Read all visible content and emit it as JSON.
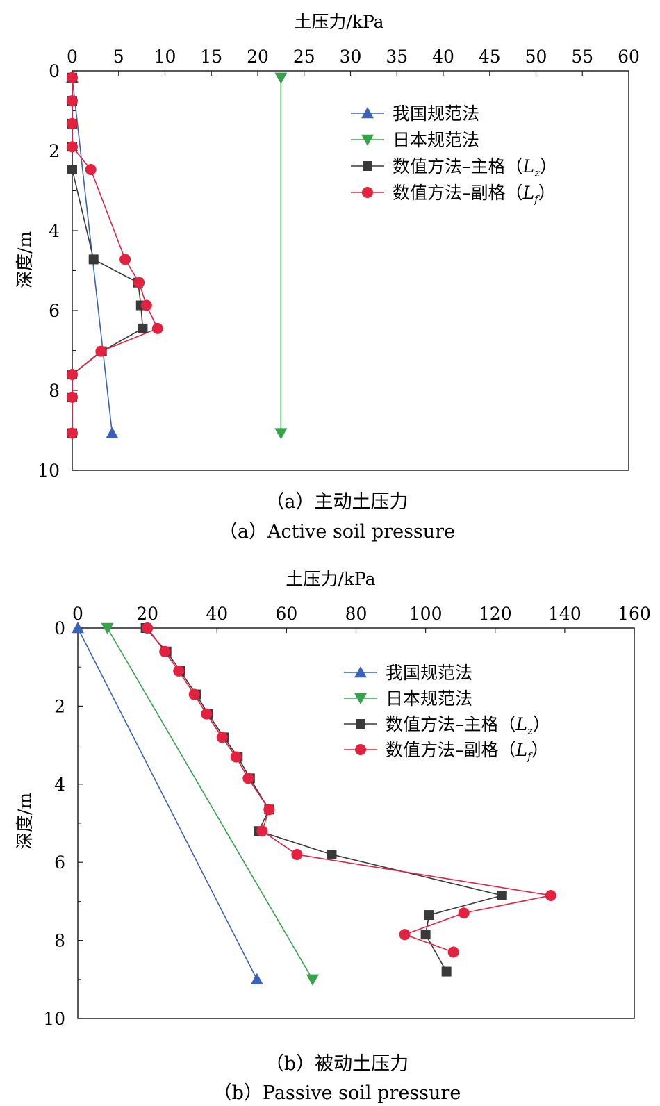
{
  "colors": {
    "cn_code": "#3a62b8",
    "jp_code": "#34a34a",
    "num_main": "#3a3a3a",
    "num_aux": "#e3223f",
    "axis": "#222222"
  },
  "chart_data": [
    {
      "type": "line",
      "xlabel": "土压力/kPa",
      "ylabel": "深度/m",
      "xlim": [
        0,
        60
      ],
      "ylim": [
        0,
        10
      ],
      "y_inverted": true,
      "x_axis_position": "top",
      "xticks": [
        "0",
        "5",
        "10",
        "15",
        "20",
        "25",
        "30",
        "35",
        "40",
        "45",
        "50",
        "55",
        "60"
      ],
      "yticks": [
        "0",
        "2",
        "4",
        "6",
        "8",
        "10"
      ],
      "legend_position": "top-right",
      "caption_cn": "（a）主动土压力",
      "caption_en": "（a）Active soil pressure",
      "series": [
        {
          "name": "我国规范法",
          "marker": "triangle-up",
          "color_key": "cn_code",
          "x": [
            0,
            4.3
          ],
          "y": [
            0.17,
            9.07
          ]
        },
        {
          "name": "日本规范法",
          "marker": "triangle-down",
          "color_key": "jp_code",
          "x": [
            22.5,
            22.5
          ],
          "y": [
            0.17,
            9.07
          ]
        },
        {
          "name": "数值方法–主格（",
          "name_italic": "L",
          "name_sub": "z",
          "name_close": "）",
          "marker": "square",
          "color_key": "num_main",
          "x": [
            0,
            0,
            0,
            0,
            0,
            2.3,
            7.1,
            7.4,
            7.6,
            3.2,
            0,
            0,
            0
          ],
          "y": [
            0.17,
            0.75,
            1.32,
            1.9,
            2.47,
            4.72,
            5.3,
            5.87,
            6.45,
            7.02,
            7.6,
            8.17,
            9.07
          ]
        },
        {
          "name": "数值方法–副格（",
          "name_italic": "L",
          "name_sub": "f",
          "name_close": "）",
          "marker": "circle",
          "color_key": "num_aux",
          "x": [
            0,
            0,
            0,
            0,
            2,
            5.7,
            7.2,
            8,
            9.2,
            3.1,
            0,
            0,
            0
          ],
          "y": [
            0.17,
            0.75,
            1.32,
            1.9,
            2.47,
            4.72,
            5.3,
            5.87,
            6.45,
            7.02,
            7.6,
            8.17,
            9.07
          ]
        }
      ]
    },
    {
      "type": "line",
      "xlabel": "土压力/kPa",
      "ylabel": "深度/m",
      "xlim": [
        0,
        160
      ],
      "ylim": [
        0,
        10
      ],
      "y_inverted": true,
      "x_axis_position": "top",
      "xticks": [
        "0",
        "20",
        "40",
        "60",
        "80",
        "100",
        "120",
        "140",
        "160"
      ],
      "yticks": [
        "0",
        "2",
        "4",
        "6",
        "8",
        "10"
      ],
      "legend_position": "top-right",
      "caption_cn": "（b）被动土压力",
      "caption_en": "（b）Passive soil pressure",
      "series": [
        {
          "name": "我国规范法",
          "marker": "triangle-up",
          "color_key": "cn_code",
          "x": [
            0,
            51.5
          ],
          "y": [
            0,
            9.0
          ]
        },
        {
          "name": "日本规范法",
          "marker": "triangle-down",
          "color_key": "jp_code",
          "x": [
            8.5,
            67.5
          ],
          "y": [
            0,
            9.0
          ]
        },
        {
          "name": "数值方法–主格（",
          "name_italic": "L",
          "name_sub": "z",
          "name_close": "）",
          "marker": "square",
          "color_key": "num_main",
          "x": [
            19.5,
            25.5,
            29.5,
            34,
            37.5,
            42,
            46,
            49.5,
            55,
            52,
            73,
            122,
            101,
            100,
            106
          ],
          "y": [
            0,
            0.6,
            1.1,
            1.7,
            2.2,
            2.8,
            3.3,
            3.85,
            4.65,
            5.2,
            5.8,
            6.85,
            7.35,
            7.85,
            8.8
          ]
        },
        {
          "name": "数值方法–副格（",
          "name_italic": "L",
          "name_sub": "f",
          "name_close": "）",
          "marker": "circle",
          "color_key": "num_aux",
          "x": [
            20,
            25,
            29,
            33.5,
            37,
            41.5,
            45.5,
            49,
            55,
            53,
            63,
            136,
            111,
            94,
            108
          ],
          "y": [
            0,
            0.6,
            1.1,
            1.7,
            2.2,
            2.8,
            3.3,
            3.85,
            4.65,
            5.2,
            5.8,
            6.85,
            7.3,
            7.85,
            8.3
          ]
        }
      ]
    }
  ]
}
